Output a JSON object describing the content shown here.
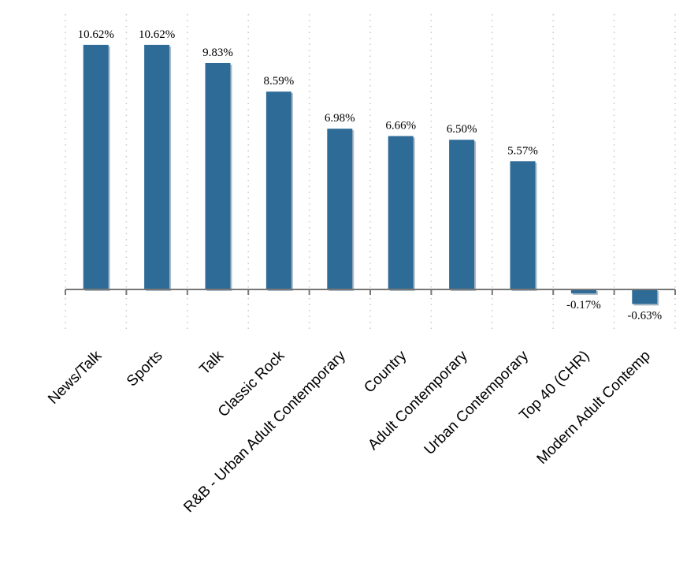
{
  "chart_data": {
    "type": "bar",
    "title": "",
    "xlabel": "",
    "ylabel": "",
    "categories": [
      "News/Talk",
      "Sports",
      "Talk",
      "Classic Rock",
      "R&B - Urban Adult Contemporary",
      "Country",
      "Adult Contemporary",
      "Urban Contemporary",
      "Top 40 (CHR)",
      "Modern Adult Contemp"
    ],
    "values": [
      10.62,
      10.62,
      9.83,
      8.59,
      6.98,
      6.66,
      6.5,
      5.57,
      -0.17,
      -0.63
    ],
    "data_labels": [
      "10.62%",
      "10.62%",
      "9.83%",
      "8.59%",
      "6.98%",
      "6.66%",
      "6.50%",
      "5.57%",
      "-0.17%",
      "-0.63%"
    ],
    "ylim": [
      -1.9,
      11.9
    ],
    "grid": true,
    "legend": "none",
    "bar_color": "#2e6b96"
  }
}
